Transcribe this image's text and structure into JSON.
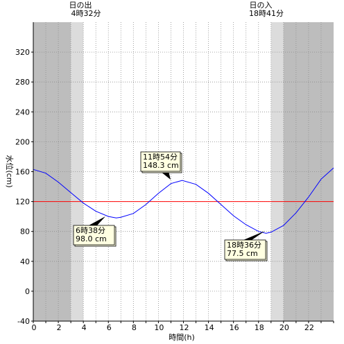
{
  "chart_data": {
    "type": "line",
    "xlabel": "時間(h)",
    "ylabel": "水位(cm)",
    "xlim": [
      0,
      24
    ],
    "ylim": [
      -40,
      360
    ],
    "x_ticks": [
      "0",
      "2",
      "4",
      "6",
      "8",
      "10",
      "12",
      "14",
      "16",
      "18",
      "20",
      "22"
    ],
    "y_ticks": [
      "-40",
      "0",
      "40",
      "80",
      "120",
      "160",
      "200",
      "240",
      "280",
      "320"
    ],
    "reference_line": {
      "value": 120,
      "color": "#ff0000"
    },
    "series": [
      {
        "color": "#0000ff",
        "x": [
          0,
          1,
          2,
          3,
          4,
          5,
          6,
          6.63,
          7,
          8,
          9,
          10,
          11,
          11.9,
          13,
          14,
          15,
          16,
          17,
          18,
          18.6,
          19,
          20,
          21,
          22,
          23,
          24
        ],
        "y": [
          163,
          158,
          146,
          132,
          118,
          107,
          100,
          98,
          99,
          104,
          116,
          131,
          144,
          148.3,
          143,
          131,
          116,
          101,
          89,
          80,
          77.5,
          79,
          88,
          105,
          126,
          150,
          165
        ]
      }
    ],
    "sunrise": {
      "label": "日の出",
      "time": "4時32分"
    },
    "sunset": {
      "label": "日の入",
      "time": "18時41分"
    },
    "annotations": [
      {
        "time": "11時54分",
        "level": "148.3 cm",
        "x": 11.9,
        "y": 148.3
      },
      {
        "time": "6時38分",
        "level": "98.0 cm",
        "x": 6.63,
        "y": 98.0
      },
      {
        "time": "18時36分",
        "level": "77.5 cm",
        "x": 18.6,
        "y": 77.5
      }
    ],
    "shading": {
      "night_color": "#bdbdbd",
      "twilight_color": "#dcdcdc",
      "day_color": "#ffffff"
    }
  }
}
